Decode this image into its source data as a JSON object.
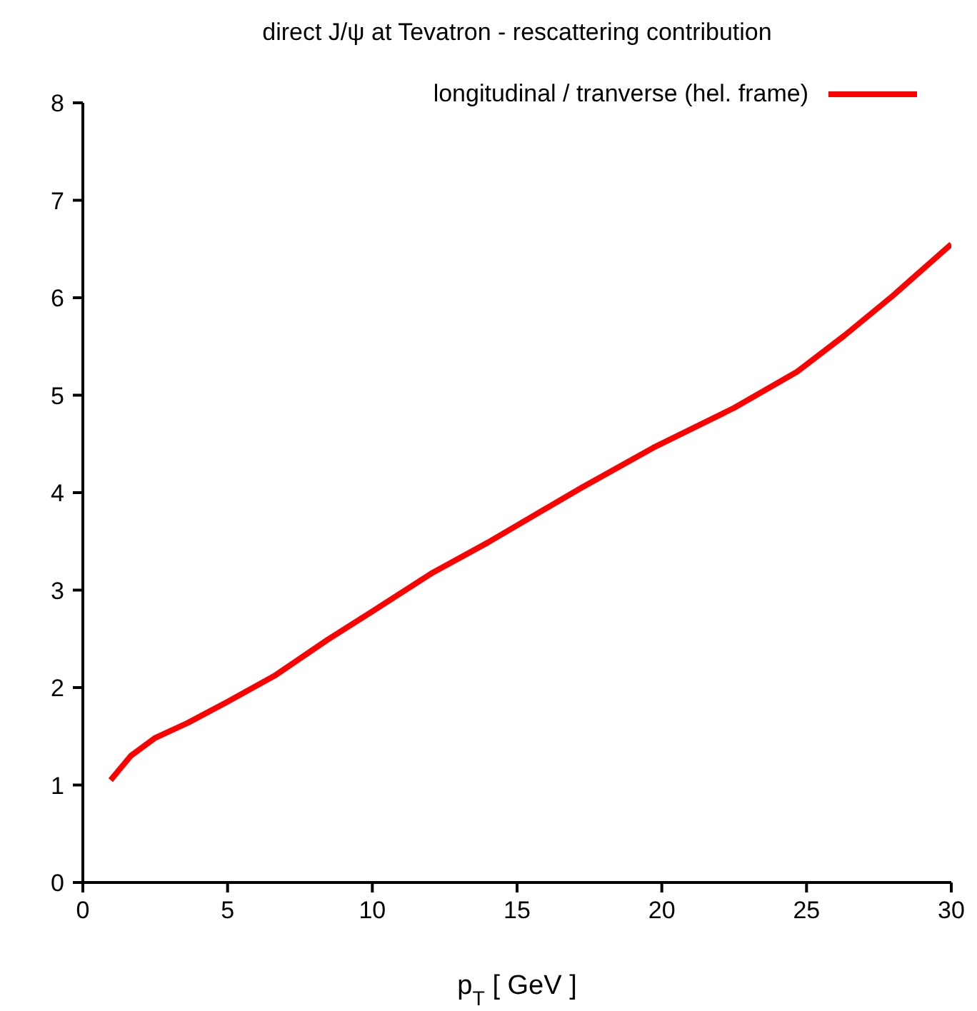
{
  "chart_data": {
    "type": "line",
    "title": "direct J/ψ at Tevatron - rescattering contribution",
    "xlabel": "p$_{T}$ [ GeV ]",
    "x": [
      0.96,
      1.66,
      2.48,
      3.64,
      4.97,
      6.62,
      8.45,
      9.94,
      12.09,
      14.0,
      17.22,
      19.7,
      22.5,
      24.67,
      26.3,
      27.98,
      30
    ],
    "series": [
      {
        "name": "longitudinal / tranverse (hel. frame)",
        "color": "#ff0000",
        "values": [
          1.05,
          1.3,
          1.48,
          1.64,
          1.85,
          2.12,
          2.49,
          2.77,
          3.18,
          3.49,
          4.05,
          4.46,
          4.87,
          5.24,
          5.61,
          6.02,
          6.55
        ]
      }
    ],
    "xlim": [
      0,
      30
    ],
    "xticks": [
      0,
      5,
      10,
      15,
      20,
      25,
      30
    ],
    "ylim": [
      0,
      8
    ],
    "yticks": [
      0,
      1,
      2,
      3,
      4,
      5,
      6,
      7,
      8
    ],
    "grid": false,
    "legend": "top right",
    "marker": "none",
    "line_style": "solid"
  }
}
